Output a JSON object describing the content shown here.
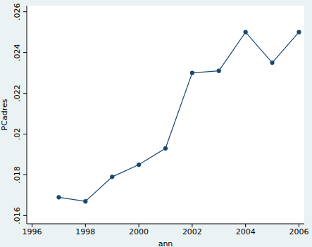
{
  "chart_data": {
    "type": "line",
    "x_label": "ann",
    "y_label": "PCadres",
    "x": [
      1997,
      1998,
      1999,
      2000,
      2001,
      2002,
      2003,
      2004,
      2005,
      2006
    ],
    "values": [
      0.0169,
      0.0167,
      0.0179,
      0.0185,
      0.0193,
      0.023,
      0.0231,
      0.025,
      0.0235,
      0.025
    ],
    "color": "#1a476f",
    "marker": "circle",
    "xlim": [
      1995.8,
      2006.2
    ],
    "xticks": [
      1996,
      1998,
      2000,
      2002,
      2004,
      2006
    ],
    "ylim": [
      0.0156,
      0.0263
    ],
    "yticks": [
      {
        "value": 0.016,
        "label": ".016"
      },
      {
        "value": 0.018,
        "label": ".018"
      },
      {
        "value": 0.02,
        "label": ".02"
      },
      {
        "value": 0.022,
        "label": ".022"
      },
      {
        "value": 0.024,
        "label": ".024"
      },
      {
        "value": 0.026,
        "label": ".026"
      }
    ],
    "grid": false
  }
}
